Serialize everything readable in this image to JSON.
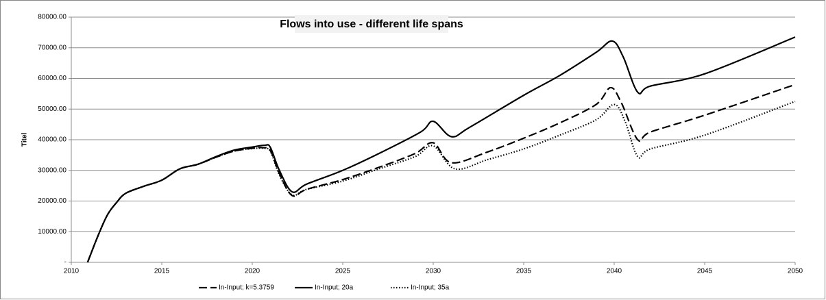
{
  "chart_data": {
    "type": "line",
    "title": "Flows into use - different life spans",
    "y_label": "Titel",
    "xlim": [
      2010,
      2050
    ],
    "xticks": [
      2010,
      2015,
      2020,
      2025,
      2030,
      2035,
      2040,
      2045,
      2050
    ],
    "ylim": [
      0,
      80000
    ],
    "yticks": [
      {
        "value": 0,
        "label": "-"
      },
      {
        "value": 10000,
        "label": "10000.00"
      },
      {
        "value": 20000,
        "label": "20000.00"
      },
      {
        "value": 30000,
        "label": "30000.00"
      },
      {
        "value": 40000,
        "label": "40000.00"
      },
      {
        "value": 50000,
        "label": "50000.00"
      },
      {
        "value": 60000,
        "label": "60000.00"
      },
      {
        "value": 70000,
        "label": "70000.00"
      },
      {
        "value": 80000,
        "label": "80000.00"
      }
    ],
    "grid": true,
    "legend": "bottom",
    "series": [
      {
        "name": "In-Input; k=5.3759",
        "color": "#000000",
        "dash": "dashed",
        "x": [
          2010.9,
          2011.5,
          2012,
          2012.5,
          2013,
          2014,
          2015,
          2016,
          2017,
          2018,
          2019,
          2020,
          2020.6,
          2021,
          2021.5,
          2022.2,
          2023,
          2025,
          2027,
          2029,
          2030,
          2031,
          2033,
          2035,
          2037,
          2039,
          2039.8,
          2040.4,
          2041.3,
          2042,
          2045,
          2050
        ],
        "values": [
          0,
          9000,
          15500,
          19500,
          22500,
          24800,
          26800,
          30500,
          32000,
          34300,
          36300,
          37200,
          37400,
          36500,
          29000,
          21800,
          23800,
          27000,
          31000,
          35500,
          39000,
          32500,
          36000,
          40500,
          45500,
          51500,
          57000,
          52000,
          40000,
          42500,
          48000,
          58000
        ]
      },
      {
        "name": "In-Input; 20a",
        "color": "#000000",
        "dash": "solid",
        "x": [
          2010.9,
          2011.5,
          2012,
          2012.5,
          2013,
          2014,
          2015,
          2016,
          2017,
          2018,
          2019,
          2020,
          2020.7,
          2021,
          2021.5,
          2022.2,
          2023,
          2025,
          2027,
          2029.3,
          2030,
          2031,
          2032,
          2035,
          2037,
          2039,
          2039.9,
          2040.5,
          2041.3,
          2042,
          2045,
          2050
        ],
        "values": [
          0,
          9000,
          15500,
          19500,
          22500,
          24800,
          26800,
          30500,
          32000,
          34500,
          36600,
          37600,
          38200,
          37500,
          30000,
          23000,
          25500,
          30000,
          35500,
          42500,
          46000,
          41000,
          44000,
          54500,
          61000,
          68500,
          72200,
          67000,
          55500,
          57500,
          61500,
          73500
        ]
      },
      {
        "name": "In-Input; 35a",
        "color": "#000000",
        "dash": "dotted",
        "x": [
          2010.9,
          2011.5,
          2012,
          2012.5,
          2013,
          2014,
          2015,
          2016,
          2017,
          2018,
          2019,
          2020,
          2020.6,
          2021,
          2021.5,
          2022.2,
          2023,
          2025,
          2027,
          2029,
          2030,
          2031.2,
          2033,
          2035,
          2037,
          2039,
          2040,
          2040.6,
          2041.3,
          2042,
          2045,
          2050
        ],
        "values": [
          0,
          9000,
          15500,
          19500,
          22500,
          24800,
          26800,
          30500,
          32000,
          34300,
          36300,
          37100,
          37200,
          36200,
          28500,
          22000,
          23800,
          26500,
          30500,
          34500,
          38000,
          30500,
          33500,
          37000,
          41500,
          46500,
          51500,
          46000,
          34500,
          37000,
          41500,
          52500
        ]
      }
    ]
  }
}
